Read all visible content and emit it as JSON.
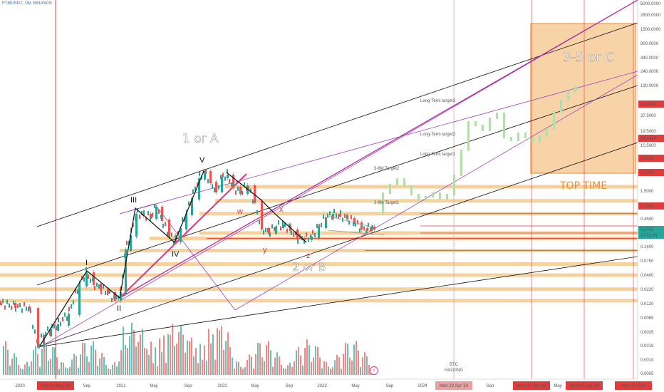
{
  "symbol": "FTMUSDT, 1W, BINANCE",
  "price_box": {
    "value": "0.2743",
    "sub": "17:41:49"
  },
  "price_axis_labels": [
    {
      "text": "5000.0000",
      "y": 5
    },
    {
      "text": "2800.0000",
      "y": 21
    },
    {
      "text": "1500.0000",
      "y": 41
    },
    {
      "text": "800.0000",
      "y": 61
    },
    {
      "text": "440.0000",
      "y": 81
    },
    {
      "text": "240.0000",
      "y": 100
    },
    {
      "text": "130.0000",
      "y": 120
    },
    {
      "text": "37.5000",
      "y": 162
    },
    {
      "text": "19.5000",
      "y": 184
    },
    {
      "text": "10.5000",
      "y": 204
    },
    {
      "text": "1.5000",
      "y": 268
    },
    {
      "text": "0.4500",
      "y": 307
    },
    {
      "text": "0.1400",
      "y": 346
    },
    {
      "text": "0.0750",
      "y": 366
    },
    {
      "text": "0.0400",
      "y": 386
    },
    {
      "text": "0.0220",
      "y": 406
    },
    {
      "text": "0.0120",
      "y": 426
    },
    {
      "text": "0.0065",
      "y": 446
    },
    {
      "text": "0.0035",
      "y": 466
    },
    {
      "text": "0.0019",
      "y": 485
    },
    {
      "text": "0.0010",
      "y": 505
    },
    {
      "text": "0.0005",
      "y": 524
    }
  ],
  "price_axis_highlights": [
    {
      "text": "61.0000",
      "y": 146,
      "color": "#e03c3c"
    },
    {
      "text": "14.0418",
      "y": 194,
      "color": "#e03c3c"
    },
    {
      "text": "6.0000",
      "y": 222,
      "color": "#e03c3c"
    },
    {
      "text": "3.2000",
      "y": 242,
      "color": "#e03c3c"
    },
    {
      "text": "0.7500",
      "y": 289,
      "color": "#e03c3c"
    }
  ],
  "time_axis_labels": [
    {
      "text": "2020",
      "x": 28
    },
    {
      "text": "Sep",
      "x": 122
    },
    {
      "text": "2021",
      "x": 170
    },
    {
      "text": "May",
      "x": 216
    },
    {
      "text": "Sep",
      "x": 264
    },
    {
      "text": "2022",
      "x": 312
    },
    {
      "text": "May",
      "x": 358
    },
    {
      "text": "Sep",
      "x": 406
    },
    {
      "text": "2023",
      "x": 452
    },
    {
      "text": "May",
      "x": 499
    },
    {
      "text": "Sep",
      "x": 547
    },
    {
      "text": "2024",
      "x": 593
    },
    {
      "text": "Sep",
      "x": 688
    },
    {
      "text": "May",
      "x": 783
    }
  ],
  "time_axis_highlights": [
    {
      "text": "Mon 11 May '20",
      "x": 78,
      "color": "#e03c3c"
    },
    {
      "text": "Mon 22 Apr '24",
      "x": 637,
      "color": "#e8a0a0"
    },
    {
      "text": "Mon 27 Jan '25",
      "x": 746,
      "color": "#e03c3c"
    },
    {
      "text": "Mon 04 Aug '25",
      "x": 820,
      "color": "#e03c3c"
    },
    {
      "text": "Mon 02 Feb",
      "x": 889,
      "color": "#e03c3c"
    }
  ],
  "annotations": {
    "wave_1a": "1 or A",
    "wave_2b": "2 or B",
    "wave_35c": "3-5 or C",
    "top_time": "TOP TIME",
    "long_target3": "Long-Term target3",
    "long_target2": "Long-Term target2",
    "long_target1": "Long-Term target1",
    "target_36m": "3-6M Target2",
    "target_3m": "3-6M Target1",
    "btc_halving_1": "BTC",
    "btc_halving_2": "HALVING",
    "label_I": "I",
    "label_II": "II",
    "label_III": "III",
    "label_IV": "IV",
    "label_V": "V",
    "label_w": "w",
    "label_x": "x",
    "label_y": "y",
    "label_z": "z"
  },
  "colors": {
    "support_band": "#f3c98d",
    "target_line": "#e03c3c",
    "channel_black": "#111111",
    "channel_purple": "#a040c0",
    "trend_magenta": "#e0357e",
    "up_candle": "#26a69a",
    "down_candle": "#ef5350",
    "future_projection": "#b6dcae",
    "top_box_fill": "#f5c58a",
    "top_box_border": "#f08a2c"
  },
  "chart_data": {
    "type": "candlestick",
    "title": "FTMUSDT, 1W, BINANCE",
    "y_scale": "log",
    "ylim": [
      0.0005,
      5000
    ],
    "x_range": [
      "2020-01",
      "2026-02"
    ],
    "price_levels": [
      0.0019,
      0.0075,
      0.04,
      0.15,
      0.75,
      3.2,
      6.0,
      14.0418,
      61.0,
      280,
      1500
    ],
    "targets": [
      {
        "label": "3-6M Target1",
        "value": 0.75
      },
      {
        "label": "3-6M Target2",
        "value": 3.2
      },
      {
        "label": "Long-Term target1",
        "value": 6.0
      },
      {
        "label": "Long-Term target2",
        "value": 14.0418
      },
      {
        "label": "Long-Term target3",
        "value": 61.0
      }
    ],
    "current_price": 0.2743,
    "vertical_markers": [
      "Mon 11 May '20",
      "Mon 22 Apr '24",
      "Mon 27 Jan '25",
      "Mon 04 Aug '25",
      "Mon 02 Feb"
    ]
  }
}
